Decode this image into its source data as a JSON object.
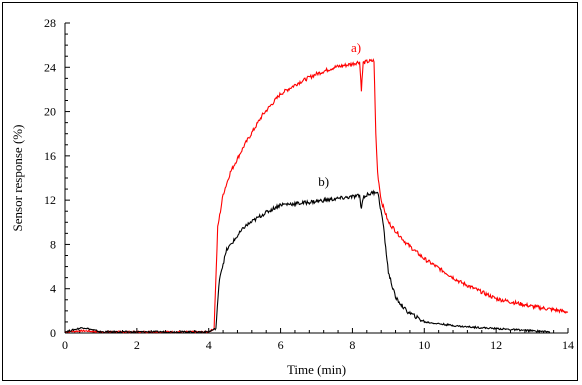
{
  "chart_data": {
    "type": "line",
    "title": "",
    "xlabel": "Time (min)",
    "ylabel": "Sensor response (%)",
    "xlim": [
      0,
      14
    ],
    "ylim": [
      0,
      28
    ],
    "xticks": [
      0,
      2,
      4,
      6,
      8,
      10,
      12,
      14
    ],
    "yticks": [
      0,
      4,
      8,
      12,
      16,
      20,
      24,
      28
    ],
    "grid": false,
    "legend": "none",
    "series": [
      {
        "name": "a)",
        "color": "#ff0000",
        "x": [
          0,
          0.5,
          1.0,
          2.0,
          3.0,
          4.0,
          4.15,
          4.25,
          4.4,
          4.6,
          5.0,
          5.5,
          6.0,
          6.5,
          7.0,
          7.5,
          8.0,
          8.2,
          8.25,
          8.3,
          8.4,
          8.6,
          8.65,
          8.7,
          8.8,
          9.0,
          9.5,
          10.0,
          11.0,
          12.0,
          13.0,
          14.0
        ],
        "y": [
          0.1,
          0.2,
          0.1,
          0.1,
          0.1,
          0.1,
          0.4,
          9.5,
          12.5,
          14.5,
          17.0,
          19.7,
          21.6,
          22.6,
          23.4,
          24.0,
          24.3,
          24.5,
          22.0,
          24.4,
          24.5,
          24.6,
          18.0,
          14.5,
          12.0,
          10.0,
          8.1,
          6.7,
          4.6,
          3.1,
          2.4,
          1.9
        ]
      },
      {
        "name": "b)",
        "color": "#000000",
        "x": [
          0,
          0.5,
          1.0,
          2.0,
          3.0,
          4.0,
          4.2,
          4.3,
          4.5,
          5.0,
          5.5,
          6.0,
          6.5,
          7.0,
          7.5,
          8.0,
          8.2,
          8.25,
          8.3,
          8.5,
          8.7,
          8.85,
          9.0,
          9.2,
          9.5,
          10.0,
          11.0,
          12.0,
          13.0,
          13.5
        ],
        "y": [
          0.1,
          0.5,
          0.1,
          0.1,
          0.1,
          0.1,
          0.4,
          5.0,
          7.5,
          9.6,
          10.7,
          11.6,
          11.7,
          11.9,
          12.1,
          12.3,
          12.4,
          11.2,
          12.3,
          12.6,
          12.8,
          10.0,
          5.5,
          3.2,
          2.0,
          1.0,
          0.6,
          0.4,
          0.2,
          0.1
        ]
      }
    ],
    "annotations": [
      {
        "text": "a)",
        "x": 8.1,
        "y": 25.4,
        "color": "#ff0000"
      },
      {
        "text": "b)",
        "x": 7.2,
        "y": 13.3,
        "color": "#000000"
      }
    ]
  }
}
